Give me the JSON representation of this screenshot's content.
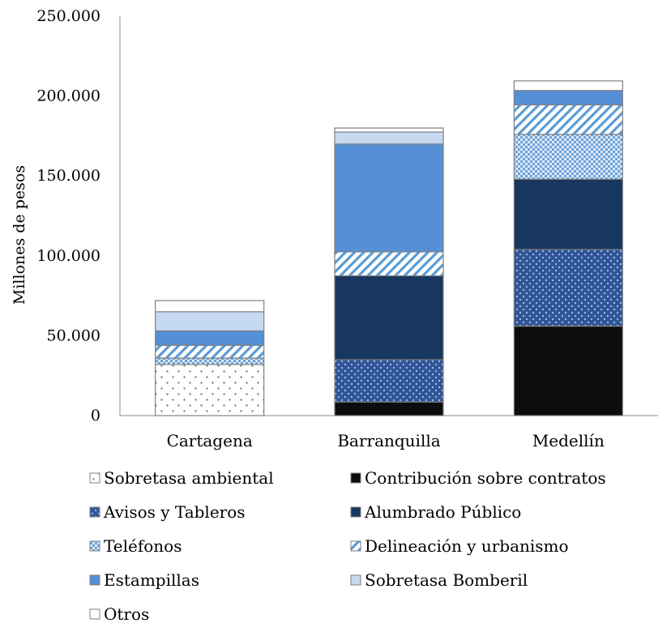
{
  "chart_data": {
    "type": "bar",
    "stacked": true,
    "title": "",
    "xlabel": "",
    "ylabel": "Millones de pesos",
    "ylim": [
      0,
      250000
    ],
    "yticks": [
      0,
      50000,
      100000,
      150000,
      200000,
      250000
    ],
    "ytick_labels": [
      "0",
      "50.000",
      "100.000",
      "150.000",
      "200.000",
      "250.000"
    ],
    "grid": false,
    "legend_position": "bottom",
    "categories": [
      "Cartagena",
      "Barranquilla",
      "Medellín"
    ],
    "series": [
      {
        "name": "Sobretasa ambiental",
        "values": [
          32000,
          0,
          0
        ],
        "color": "#ffffff",
        "pattern": "dots-sparse"
      },
      {
        "name": "Contribución sobre contratos",
        "values": [
          0,
          8500,
          56000
        ],
        "color": "#0d0d0d",
        "pattern": "solid"
      },
      {
        "name": "Avisos y Tableros",
        "values": [
          0,
          26500,
          48000
        ],
        "color": "#2f5597",
        "pattern": "dots-dense"
      },
      {
        "name": "Alumbrado Público",
        "values": [
          0,
          52500,
          44000
        ],
        "color": "#17375e",
        "pattern": "solid"
      },
      {
        "name": "Teléfonos",
        "values": [
          4000,
          0,
          28000
        ],
        "color": "#9dc3e6",
        "pattern": "checker"
      },
      {
        "name": "Delineación y urbanismo",
        "values": [
          8000,
          15000,
          18500
        ],
        "color": "#5b9bd5",
        "pattern": "diagonal"
      },
      {
        "name": "Estampillas",
        "values": [
          9000,
          67500,
          9000
        ],
        "color": "#5590d6",
        "pattern": "solid"
      },
      {
        "name": "Sobretasa Bomberil",
        "values": [
          12000,
          7500,
          0
        ],
        "color": "#c5d9f1",
        "pattern": "solid"
      },
      {
        "name": "Otros",
        "values": [
          7000,
          2500,
          6000
        ],
        "color": "#ffffff",
        "pattern": "solid"
      }
    ]
  }
}
